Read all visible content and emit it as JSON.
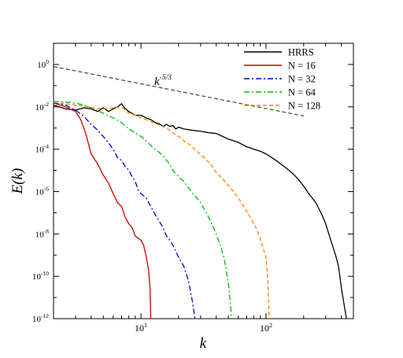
{
  "chart_data": {
    "type": "line",
    "xlabel": "k",
    "ylabel": "E(k)",
    "xscale": "log",
    "yscale": "log",
    "xlim": [
      2,
      500
    ],
    "ylim": [
      1e-12,
      10
    ],
    "x_ticks": [
      {
        "value": 10,
        "base": "10",
        "exp": "1"
      },
      {
        "value": 100,
        "base": "10",
        "exp": "2"
      }
    ],
    "y_ticks": [
      {
        "value": 1,
        "base": "10",
        "exp": "0"
      },
      {
        "value": 0.01,
        "base": "10",
        "exp": "-2"
      },
      {
        "value": 0.0001,
        "base": "10",
        "exp": "-4"
      },
      {
        "value": 1e-06,
        "base": "10",
        "exp": "-6"
      },
      {
        "value": 1e-08,
        "base": "10",
        "exp": "-8"
      },
      {
        "value": 1e-10,
        "base": "10",
        "exp": "-10"
      },
      {
        "value": 1e-12,
        "base": "10",
        "exp": "-12"
      }
    ],
    "legend_position": "top-right",
    "series": [
      {
        "name": "HRRS",
        "color": "#000000",
        "dash": "solid",
        "points": [
          [
            2,
            0.012
          ],
          [
            2.5,
            0.008
          ],
          [
            3,
            0.007
          ],
          [
            3.5,
            0.009
          ],
          [
            4,
            0.008
          ],
          [
            4.5,
            0.006
          ],
          [
            5,
            0.009
          ],
          [
            5.5,
            0.006
          ],
          [
            6,
            0.008
          ],
          [
            6.5,
            0.01
          ],
          [
            7,
            0.014
          ],
          [
            7.5,
            0.008
          ],
          [
            8,
            0.006
          ],
          [
            9,
            0.004
          ],
          [
            10,
            0.004
          ],
          [
            11,
            0.003
          ],
          [
            12,
            0.0025
          ],
          [
            13,
            0.0018
          ],
          [
            14,
            0.0016
          ],
          [
            15,
            0.0012
          ],
          [
            16,
            0.0015
          ],
          [
            17,
            0.0012
          ],
          [
            18,
            0.0013
          ],
          [
            19,
            0.0009
          ],
          [
            20,
            0.0011
          ],
          [
            22,
            0.0009
          ],
          [
            25,
            0.0008
          ],
          [
            30,
            0.0007
          ],
          [
            35,
            0.0006
          ],
          [
            40,
            0.00055
          ],
          [
            45,
            0.0004
          ],
          [
            50,
            0.0003
          ],
          [
            60,
            0.00021
          ],
          [
            70,
            0.00013
          ],
          [
            80,
            0.0001
          ],
          [
            90,
            8e-05
          ],
          [
            100,
            6e-05
          ],
          [
            120,
            3e-05
          ],
          [
            140,
            1.5e-05
          ],
          [
            160,
            8e-06
          ],
          [
            180,
            4e-06
          ],
          [
            200,
            1.8e-06
          ],
          [
            220,
            8e-07
          ],
          [
            250,
            3e-07
          ],
          [
            280,
            8e-08
          ],
          [
            300,
            3e-08
          ],
          [
            330,
            5e-09
          ],
          [
            360,
            1e-09
          ],
          [
            380,
            3e-10
          ],
          [
            400,
            3e-11
          ],
          [
            420,
            5e-12
          ],
          [
            440,
            1e-12
          ]
        ]
      },
      {
        "name": "N = 16",
        "color": "#cc0000",
        "dash": "solid",
        "points": [
          [
            2,
            0.015
          ],
          [
            2.5,
            0.01
          ],
          [
            3,
            0.006
          ],
          [
            3.3,
            0.0025
          ],
          [
            3.6,
            0.0006
          ],
          [
            4,
            6e-05
          ],
          [
            4.5,
            2e-05
          ],
          [
            5,
            6e-06
          ],
          [
            5.5,
            2.5e-06
          ],
          [
            6,
            8e-07
          ],
          [
            6.5,
            3e-07
          ],
          [
            7,
            2e-07
          ],
          [
            7.5,
            6e-08
          ],
          [
            8,
            3e-08
          ],
          [
            8.5,
            2e-08
          ],
          [
            9,
            8e-09
          ],
          [
            10,
            5e-09
          ],
          [
            10.5,
            3e-09
          ],
          [
            11,
            9e-10
          ],
          [
            11.5,
            2e-10
          ],
          [
            11.8,
            3e-11
          ],
          [
            12,
            1e-12
          ]
        ]
      },
      {
        "name": "N = 32",
        "color": "#0000cc",
        "dash": "dashdot",
        "points": [
          [
            2,
            0.015
          ],
          [
            2.5,
            0.012
          ],
          [
            3,
            0.007
          ],
          [
            3.5,
            0.0035
          ],
          [
            4,
            0.0015
          ],
          [
            4.5,
            0.0008
          ],
          [
            5,
            0.0004
          ],
          [
            5.5,
            0.0002
          ],
          [
            6,
            0.0001
          ],
          [
            6.5,
            4e-05
          ],
          [
            7,
            3e-05
          ],
          [
            7.5,
            1.5e-05
          ],
          [
            8,
            1e-05
          ],
          [
            8.5,
            5e-06
          ],
          [
            9,
            3e-06
          ],
          [
            9.5,
            1.2e-06
          ],
          [
            10,
            8e-07
          ],
          [
            11,
            5e-07
          ],
          [
            12,
            2e-07
          ],
          [
            13,
            8e-08
          ],
          [
            14,
            4e-08
          ],
          [
            15,
            2e-08
          ],
          [
            16,
            8e-09
          ],
          [
            17,
            5e-09
          ],
          [
            18,
            3e-09
          ],
          [
            19,
            1.5e-09
          ],
          [
            20,
            8e-10
          ],
          [
            22,
            3e-10
          ],
          [
            24,
            6e-11
          ],
          [
            26,
            5e-12
          ],
          [
            27,
            1e-12
          ]
        ]
      },
      {
        "name": "N = 64",
        "color": "#00bb00",
        "dash": "dashdot",
        "points": [
          [
            2,
            0.018
          ],
          [
            2.5,
            0.017
          ],
          [
            3,
            0.015
          ],
          [
            3.5,
            0.012
          ],
          [
            4,
            0.009
          ],
          [
            5,
            0.005
          ],
          [
            6,
            0.003
          ],
          [
            7,
            0.0018
          ],
          [
            8,
            0.0009
          ],
          [
            9,
            0.0006
          ],
          [
            10,
            0.0004
          ],
          [
            11,
            0.00025
          ],
          [
            12,
            0.00015
          ],
          [
            13,
            0.0001
          ],
          [
            14,
            7e-05
          ],
          [
            15,
            5e-05
          ],
          [
            16,
            3e-05
          ],
          [
            17,
            2e-05
          ],
          [
            18,
            1e-05
          ],
          [
            20,
            5e-06
          ],
          [
            22,
            3e-06
          ],
          [
            24,
            1.5e-06
          ],
          [
            26,
            8e-07
          ],
          [
            28,
            5e-07
          ],
          [
            30,
            3e-07
          ],
          [
            32,
            1.5e-07
          ],
          [
            34,
            8e-08
          ],
          [
            36,
            4e-08
          ],
          [
            38,
            2e-08
          ],
          [
            40,
            1e-08
          ],
          [
            43,
            3e-09
          ],
          [
            46,
            8e-10
          ],
          [
            48,
            2e-10
          ],
          [
            50,
            5e-11
          ],
          [
            52,
            5e-12
          ],
          [
            53,
            1e-12
          ]
        ]
      },
      {
        "name": "N = 128",
        "color": "#ff8000",
        "dash": "dashed",
        "points": [
          [
            2,
            0.016
          ],
          [
            2.5,
            0.014
          ],
          [
            3,
            0.012
          ],
          [
            3.5,
            0.011
          ],
          [
            4,
            0.009
          ],
          [
            5,
            0.008
          ],
          [
            6,
            0.009
          ],
          [
            7,
            0.01
          ],
          [
            8,
            0.005
          ],
          [
            9,
            0.004
          ],
          [
            10,
            0.003
          ],
          [
            11,
            0.0025
          ],
          [
            12,
            0.002
          ],
          [
            14,
            0.0014
          ],
          [
            16,
            0.001
          ],
          [
            18,
            0.0006
          ],
          [
            20,
            0.0004
          ],
          [
            22,
            0.00025
          ],
          [
            25,
            0.00015
          ],
          [
            28,
            8e-05
          ],
          [
            32,
            4e-05
          ],
          [
            36,
            2e-05
          ],
          [
            40,
            8e-06
          ],
          [
            45,
            4e-06
          ],
          [
            50,
            2e-06
          ],
          [
            55,
            1e-06
          ],
          [
            60,
            5e-07
          ],
          [
            65,
            2.5e-07
          ],
          [
            70,
            1.2e-07
          ],
          [
            75,
            6e-08
          ],
          [
            80,
            3e-08
          ],
          [
            85,
            1.5e-08
          ],
          [
            90,
            6e-09
          ],
          [
            95,
            2e-09
          ],
          [
            100,
            8e-10
          ],
          [
            103,
            1e-10
          ],
          [
            105,
            5e-12
          ],
          [
            106,
            1e-12
          ]
        ]
      }
    ],
    "reference_line": {
      "label_base": "k",
      "label_exp": "-5/3",
      "color": "#444444",
      "dash": "dashed",
      "points": [
        [
          2,
          0.8
        ],
        [
          200,
          0.0037
        ]
      ]
    }
  }
}
